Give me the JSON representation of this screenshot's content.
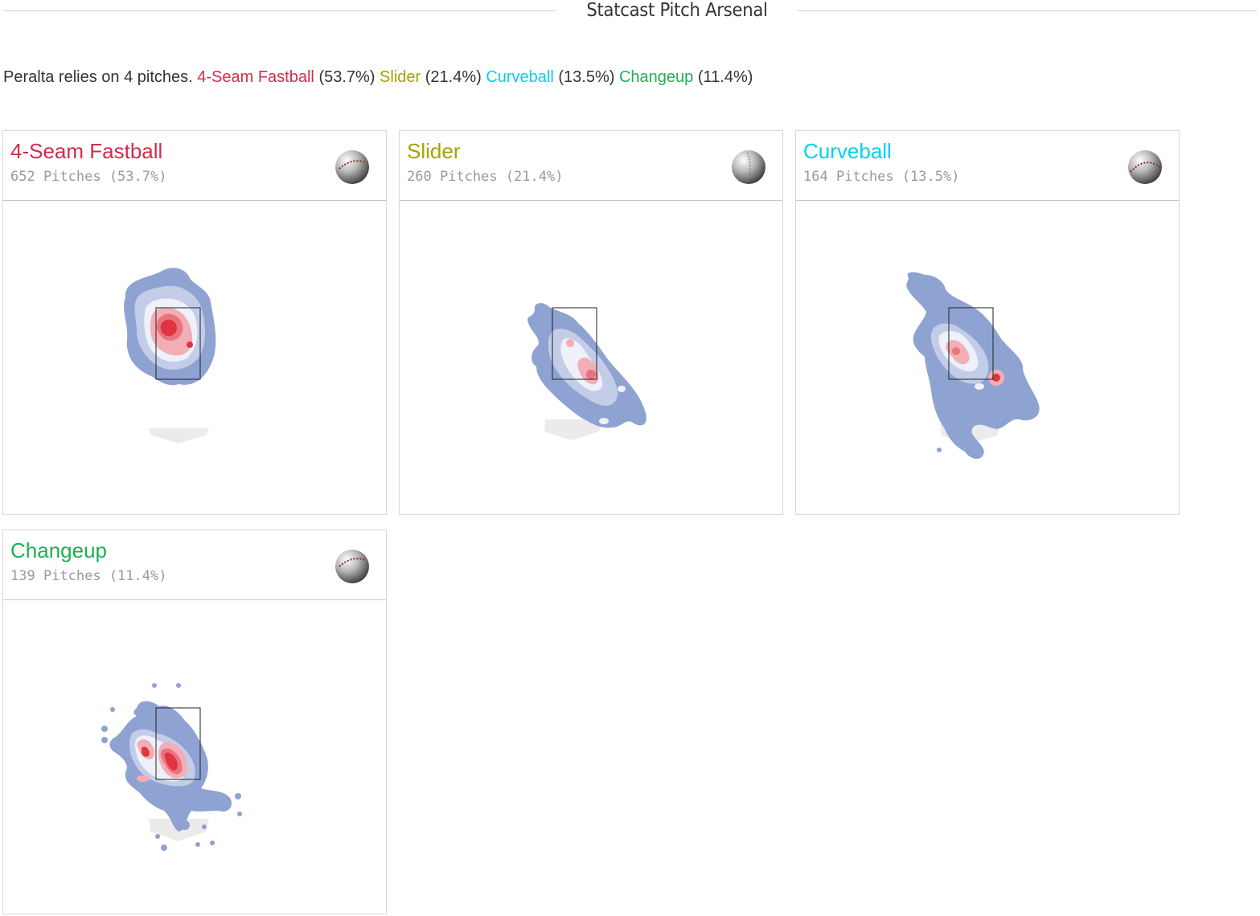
{
  "section": {
    "title": "Statcast Pitch Arsenal"
  },
  "summary": {
    "lead": "Peralta relies on 4 pitches.",
    "items": [
      {
        "name": "4-Seam Fastball",
        "pct": "(53.7%)",
        "color": "#d22d49"
      },
      {
        "name": "Slider",
        "pct": "(21.4%)",
        "color": "#a6a300"
      },
      {
        "name": "Curveball",
        "pct": "(13.5%)",
        "color": "#00d1ed"
      },
      {
        "name": "Changeup",
        "pct": "(11.4%)",
        "color": "#1db053"
      }
    ]
  },
  "cards": [
    {
      "name": "4-Seam Fastball",
      "count": "652 Pitches (53.7%)",
      "color": "#d22d49",
      "icon": "baseball-icon"
    },
    {
      "name": "Slider",
      "count": "260 Pitches (21.4%)",
      "color": "#a6a300",
      "icon": "baseball-icon"
    },
    {
      "name": "Curveball",
      "count": "164 Pitches (13.5%)",
      "color": "#00d1ed",
      "icon": "baseball-icon"
    },
    {
      "name": "Changeup",
      "count": "139 Pitches (11.4%)",
      "color": "#1db053",
      "icon": "baseball-icon"
    }
  ],
  "colors": {
    "density_low": "#8fa3d2",
    "density_mid": "#eef0fa",
    "density_high": "#f2aeb4",
    "density_peak": "#de3540",
    "plate": "#ebebeb"
  }
}
